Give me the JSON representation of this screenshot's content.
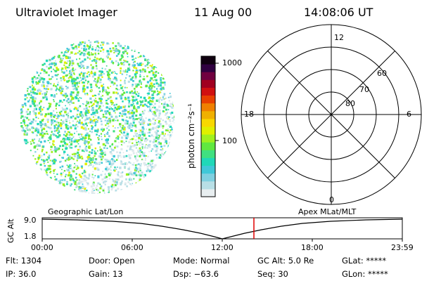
{
  "header": {
    "instrument": "Ultraviolet Imager",
    "date": "11 Aug 00",
    "time": "14:08:06 UT"
  },
  "colorbar": {
    "unit_label": "photon cm⁻²s⁻¹",
    "tick_1000": "1000",
    "tick_100": "100",
    "colors": [
      "#e8eef0",
      "#b8dfe6",
      "#80d0e0",
      "#40c8d8",
      "#20d8b8",
      "#40e080",
      "#60e840",
      "#a0f020",
      "#e0f000",
      "#f8d800",
      "#f0b000",
      "#f08000",
      "#e84000",
      "#d01010",
      "#a00020",
      "#700040",
      "#300040",
      "#100010"
    ]
  },
  "polar": {
    "mlt_12": "12",
    "mlt_18": "18",
    "mlt_6": "6",
    "mlt_0": "0",
    "lat_60": "60",
    "lat_70": "70",
    "lat_80": "80"
  },
  "altitude_plot": {
    "left_title": "Geographic Lat/Lon",
    "right_title": "Apex  MLat/MLT",
    "y_label": "GC Alt",
    "y_top": "9.0",
    "y_bottom": "1.8",
    "x_ticks": [
      "00:00",
      "06:00",
      "12:00",
      "18:00",
      "23:59"
    ],
    "marker_color": "#e00000"
  },
  "info": {
    "flt": "Flt: 1304",
    "ip": "IP: 36.0",
    "door": "Door: Open",
    "gain": "Gain: 13",
    "mode": "Mode: Normal",
    "dsp": "Dsp:   −63.6",
    "gcalt": "GC Alt: 5.0 Re",
    "seq": "Seq: 30",
    "glat": "GLat: *****",
    "glon": "GLon: *****"
  }
}
